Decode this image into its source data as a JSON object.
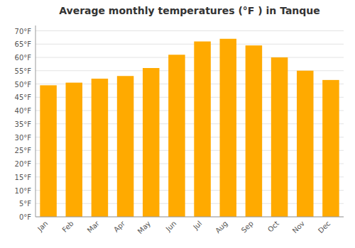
{
  "chart_data": {
    "type": "bar",
    "title": "Average monthly temperatures (°F ) in Tanque",
    "categories": [
      "Jan",
      "Feb",
      "Mar",
      "Apr",
      "May",
      "Jun",
      "Jul",
      "Aug",
      "Sep",
      "Oct",
      "Nov",
      "Dec"
    ],
    "values": [
      49.5,
      50.5,
      52.0,
      53.0,
      56.0,
      61.0,
      66.0,
      67.0,
      64.5,
      60.0,
      55.0,
      51.5
    ],
    "color": "#FFAA00",
    "ylim": [
      0,
      72
    ],
    "yticks": [
      {
        "value": 0,
        "label": "0°F"
      },
      {
        "value": 5,
        "label": "5°F"
      },
      {
        "value": 10,
        "label": "10°F"
      },
      {
        "value": 15,
        "label": "15°F"
      },
      {
        "value": 20,
        "label": "20°F"
      },
      {
        "value": 25,
        "label": "25°F"
      },
      {
        "value": 30,
        "label": "30°F"
      },
      {
        "value": 35,
        "label": "35°F"
      },
      {
        "value": 40,
        "label": "40°F"
      },
      {
        "value": 45,
        "label": "45°F"
      },
      {
        "value": 50,
        "label": "50°F"
      },
      {
        "value": 55,
        "label": "55°F"
      },
      {
        "value": 60,
        "label": "60°F"
      },
      {
        "value": 65,
        "label": "65°F"
      },
      {
        "value": 70,
        "label": "70°F"
      }
    ],
    "grid": true
  }
}
